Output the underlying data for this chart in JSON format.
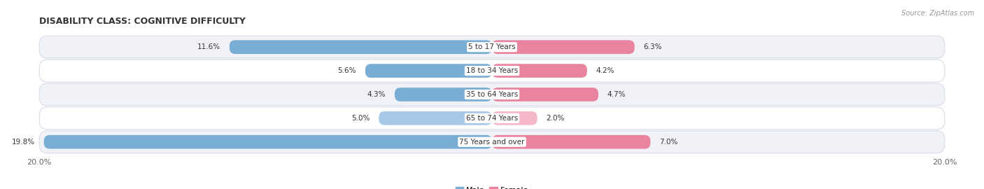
{
  "title": "DISABILITY CLASS: COGNITIVE DIFFICULTY",
  "source": "Source: ZipAtlas.com",
  "categories": [
    "5 to 17 Years",
    "18 to 34 Years",
    "35 to 64 Years",
    "65 to 74 Years",
    "75 Years and over"
  ],
  "male_values": [
    11.6,
    5.6,
    4.3,
    5.0,
    19.8
  ],
  "female_values": [
    6.3,
    4.2,
    4.7,
    2.0,
    7.0
  ],
  "max_val": 20.0,
  "male_color": "#7aadd4",
  "female_color_rows": [
    "#e8849e",
    "#e8849e",
    "#e8849e",
    "#f5b8c8",
    "#e8849e"
  ],
  "male_color_rows": [
    "#7aadd4",
    "#7aadd4",
    "#7aadd4",
    "#a8c8e8",
    "#7aadd4"
  ],
  "row_bg_color": "#e4e8f0",
  "row_inner_color_odd": "#f5f6fa",
  "row_inner_color_even": "#ffffff",
  "label_color": "#333333",
  "title_color": "#333333",
  "axis_label_color": "#666666",
  "legend_male_color": "#7aadd4",
  "legend_female_color": "#e8849e"
}
